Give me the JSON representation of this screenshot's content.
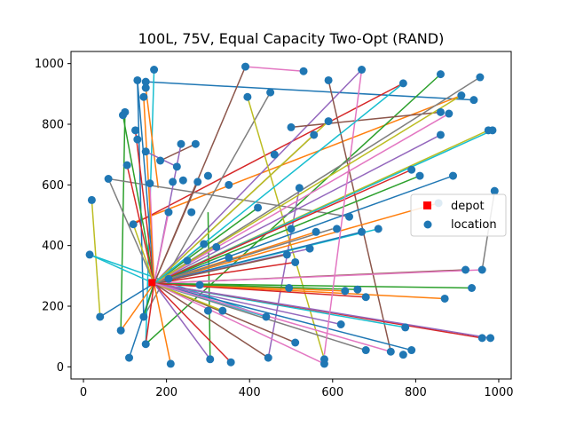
{
  "chart_data": {
    "type": "scatter",
    "title": "100L, 75V, Equal Capacity Two-Opt (RAND)",
    "xlabel": "",
    "ylabel": "",
    "xlim": [
      -30,
      1030
    ],
    "ylim": [
      -40,
      1040
    ],
    "xticks": [
      "0",
      "200",
      "400",
      "600",
      "800",
      "1000"
    ],
    "yticks": [
      "0",
      "200",
      "400",
      "600",
      "800",
      "1000"
    ],
    "grid": false,
    "legend": {
      "position": "center-right",
      "entries": [
        "depot",
        "location"
      ]
    },
    "depot": {
      "x": 165,
      "y": 278,
      "color": "#ff0000"
    },
    "location_color": "#1f77b4",
    "route_colors": [
      "#1f77b4",
      "#ff7f0e",
      "#2ca02c",
      "#d62728",
      "#9467bd",
      "#8c564b",
      "#e377c2",
      "#7f7f7f",
      "#bcbd22",
      "#17becf"
    ],
    "locations": [
      [
        955,
        955
      ],
      [
        940,
        880
      ],
      [
        910,
        895
      ],
      [
        860,
        965
      ],
      [
        770,
        935
      ],
      [
        670,
        980
      ],
      [
        590,
        945
      ],
      [
        530,
        975
      ],
      [
        450,
        905
      ],
      [
        390,
        990
      ],
      [
        395,
        890
      ],
      [
        170,
        980
      ],
      [
        150,
        940
      ],
      [
        130,
        945
      ],
      [
        145,
        890
      ],
      [
        150,
        920
      ],
      [
        100,
        840
      ],
      [
        95,
        830
      ],
      [
        125,
        780
      ],
      [
        130,
        750
      ],
      [
        150,
        710
      ],
      [
        185,
        680
      ],
      [
        160,
        605
      ],
      [
        105,
        665
      ],
      [
        225,
        660
      ],
      [
        215,
        610
      ],
      [
        270,
        735
      ],
      [
        235,
        735
      ],
      [
        275,
        610
      ],
      [
        205,
        510
      ],
      [
        20,
        550
      ],
      [
        60,
        620
      ],
      [
        120,
        470
      ],
      [
        15,
        370
      ],
      [
        40,
        165
      ],
      [
        90,
        120
      ],
      [
        110,
        30
      ],
      [
        145,
        165
      ],
      [
        150,
        75
      ],
      [
        210,
        10
      ],
      [
        305,
        25
      ],
      [
        355,
        15
      ],
      [
        445,
        30
      ],
      [
        510,
        80
      ],
      [
        580,
        25
      ],
      [
        580,
        10
      ],
      [
        680,
        55
      ],
      [
        740,
        50
      ],
      [
        770,
        40
      ],
      [
        775,
        130
      ],
      [
        790,
        55
      ],
      [
        870,
        225
      ],
      [
        935,
        260
      ],
      [
        960,
        95
      ],
      [
        980,
        95
      ],
      [
        920,
        320
      ],
      [
        960,
        320
      ],
      [
        990,
        580
      ],
      [
        975,
        780
      ],
      [
        985,
        780
      ],
      [
        890,
        630
      ],
      [
        855,
        540
      ],
      [
        810,
        630
      ],
      [
        790,
        650
      ],
      [
        860,
        765
      ],
      [
        860,
        840
      ],
      [
        880,
        835
      ],
      [
        500,
        790
      ],
      [
        555,
        765
      ],
      [
        590,
        810
      ],
      [
        640,
        495
      ],
      [
        710,
        455
      ],
      [
        670,
        445
      ],
      [
        560,
        445
      ],
      [
        520,
        590
      ],
      [
        420,
        525
      ],
      [
        510,
        345
      ],
      [
        545,
        390
      ],
      [
        490,
        370
      ],
      [
        500,
        455
      ],
      [
        320,
        395
      ],
      [
        290,
        405
      ],
      [
        350,
        360
      ],
      [
        335,
        185
      ],
      [
        300,
        185
      ],
      [
        260,
        510
      ],
      [
        240,
        615
      ],
      [
        440,
        165
      ],
      [
        495,
        260
      ],
      [
        630,
        250
      ],
      [
        660,
        255
      ],
      [
        680,
        230
      ],
      [
        620,
        140
      ],
      [
        350,
        600
      ],
      [
        280,
        270
      ],
      [
        205,
        290
      ],
      [
        250,
        350
      ],
      [
        300,
        630
      ],
      [
        460,
        700
      ],
      [
        610,
        455
      ]
    ],
    "routes": [
      [
        [
          940,
          880
        ],
        [
          150,
          940
        ]
      ],
      [
        [
          910,
          895
        ],
        [
          110,
          470
        ]
      ],
      [
        [
          860,
          965
        ],
        [
          150,
          75
        ]
      ],
      [
        [
          770,
          935
        ],
        [
          120,
          470
        ]
      ],
      [
        [
          670,
          980
        ],
        [
          170,
          275
        ]
      ],
      [
        [
          590,
          945
        ],
        [
          740,
          50
        ]
      ],
      [
        [
          530,
          975
        ],
        [
          390,
          990
        ]
      ],
      [
        [
          450,
          905
        ],
        [
          145,
          165
        ]
      ],
      [
        [
          395,
          890
        ],
        [
          580,
          25
        ]
      ],
      [
        [
          170,
          980
        ],
        [
          150,
          75
        ]
      ],
      [
        [
          130,
          945
        ],
        [
          145,
          165
        ]
      ],
      [
        [
          150,
          920
        ],
        [
          180,
          590
        ]
      ],
      [
        [
          100,
          840
        ],
        [
          90,
          120
        ]
      ],
      [
        [
          125,
          780
        ],
        [
          170,
          275
        ]
      ],
      [
        [
          150,
          710
        ],
        [
          225,
          660
        ]
      ],
      [
        [
          185,
          680
        ],
        [
          270,
          735
        ]
      ],
      [
        [
          160,
          605
        ],
        [
          170,
          275
        ]
      ],
      [
        [
          60,
          620
        ],
        [
          640,
          495
        ]
      ],
      [
        [
          20,
          550
        ],
        [
          40,
          165
        ]
      ],
      [
        [
          15,
          370
        ],
        [
          440,
          165
        ]
      ],
      [
        [
          110,
          30
        ],
        [
          170,
          275
        ]
      ],
      [
        [
          210,
          10
        ],
        [
          170,
          275
        ]
      ],
      [
        [
          305,
          25
        ],
        [
          300,
          510
        ]
      ],
      [
        [
          355,
          15
        ],
        [
          170,
          275
        ]
      ],
      [
        [
          445,
          30
        ],
        [
          520,
          590
        ]
      ],
      [
        [
          510,
          80
        ],
        [
          170,
          275
        ]
      ],
      [
        [
          580,
          10
        ],
        [
          170,
          275
        ]
      ],
      [
        [
          680,
          55
        ],
        [
          170,
          275
        ]
      ],
      [
        [
          770,
          40
        ],
        [
          770,
          35
        ]
      ],
      [
        [
          775,
          130
        ],
        [
          170,
          275
        ]
      ],
      [
        [
          790,
          55
        ],
        [
          170,
          275
        ]
      ],
      [
        [
          870,
          225
        ],
        [
          170,
          275
        ]
      ],
      [
        [
          935,
          260
        ],
        [
          170,
          275
        ]
      ],
      [
        [
          960,
          95
        ],
        [
          170,
          275
        ]
      ],
      [
        [
          980,
          95
        ],
        [
          170,
          275
        ]
      ],
      [
        [
          920,
          320
        ],
        [
          170,
          275
        ]
      ],
      [
        [
          960,
          320
        ],
        [
          170,
          275
        ]
      ],
      [
        [
          990,
          580
        ],
        [
          960,
          320
        ]
      ],
      [
        [
          975,
          780
        ],
        [
          170,
          275
        ]
      ],
      [
        [
          985,
          780
        ],
        [
          170,
          275
        ]
      ],
      [
        [
          890,
          630
        ],
        [
          170,
          275
        ]
      ],
      [
        [
          855,
          540
        ],
        [
          170,
          275
        ]
      ],
      [
        [
          810,
          630
        ],
        [
          170,
          275
        ]
      ],
      [
        [
          790,
          650
        ],
        [
          170,
          275
        ]
      ],
      [
        [
          860,
          765
        ],
        [
          170,
          275
        ]
      ],
      [
        [
          860,
          840
        ],
        [
          500,
          790
        ]
      ],
      [
        [
          880,
          835
        ],
        [
          170,
          275
        ]
      ],
      [
        [
          555,
          765
        ],
        [
          170,
          275
        ]
      ],
      [
        [
          590,
          810
        ],
        [
          170,
          275
        ]
      ],
      [
        [
          710,
          455
        ],
        [
          170,
          275
        ]
      ],
      [
        [
          670,
          445
        ],
        [
          170,
          275
        ]
      ],
      [
        [
          560,
          445
        ],
        [
          170,
          275
        ]
      ],
      [
        [
          420,
          525
        ],
        [
          170,
          275
        ]
      ],
      [
        [
          510,
          345
        ],
        [
          170,
          275
        ]
      ],
      [
        [
          545,
          390
        ],
        [
          170,
          275
        ]
      ],
      [
        [
          490,
          370
        ],
        [
          170,
          275
        ]
      ],
      [
        [
          320,
          395
        ],
        [
          170,
          275
        ]
      ],
      [
        [
          290,
          405
        ],
        [
          170,
          275
        ]
      ],
      [
        [
          335,
          185
        ],
        [
          170,
          275
        ]
      ],
      [
        [
          440,
          165
        ],
        [
          170,
          275
        ]
      ],
      [
        [
          495,
          260
        ],
        [
          170,
          275
        ]
      ],
      [
        [
          630,
          250
        ],
        [
          170,
          275
        ]
      ],
      [
        [
          660,
          255
        ],
        [
          170,
          275
        ]
      ],
      [
        [
          680,
          230
        ],
        [
          170,
          275
        ]
      ],
      [
        [
          620,
          140
        ],
        [
          170,
          275
        ]
      ],
      [
        [
          390,
          990
        ],
        [
          170,
          275
        ]
      ],
      [
        [
          670,
          980
        ],
        [
          580,
          40
        ]
      ],
      [
        [
          955,
          955
        ],
        [
          170,
          275
        ]
      ],
      [
        [
          910,
          895
        ],
        [
          170,
          275
        ]
      ],
      [
        [
          770,
          935
        ],
        [
          170,
          275
        ]
      ],
      [
        [
          130,
          945
        ],
        [
          170,
          275
        ]
      ],
      [
        [
          145,
          890
        ],
        [
          170,
          275
        ]
      ],
      [
        [
          95,
          830
        ],
        [
          170,
          275
        ]
      ],
      [
        [
          105,
          665
        ],
        [
          170,
          275
        ]
      ],
      [
        [
          235,
          735
        ],
        [
          170,
          275
        ]
      ],
      [
        [
          275,
          610
        ],
        [
          170,
          275
        ]
      ],
      [
        [
          205,
          510
        ],
        [
          170,
          275
        ]
      ],
      [
        [
          60,
          620
        ],
        [
          170,
          275
        ]
      ],
      [
        [
          120,
          470
        ],
        [
          170,
          275
        ]
      ],
      [
        [
          15,
          370
        ],
        [
          170,
          275
        ]
      ],
      [
        [
          40,
          165
        ],
        [
          170,
          275
        ]
      ],
      [
        [
          90,
          120
        ],
        [
          170,
          275
        ]
      ],
      [
        [
          145,
          165
        ],
        [
          170,
          275
        ]
      ],
      [
        [
          150,
          75
        ],
        [
          170,
          275
        ]
      ],
      [
        [
          305,
          25
        ],
        [
          170,
          275
        ]
      ],
      [
        [
          445,
          30
        ],
        [
          170,
          275
        ]
      ],
      [
        [
          740,
          50
        ],
        [
          170,
          275
        ]
      ],
      [
        [
          600,
          455
        ],
        [
          170,
          275
        ]
      ]
    ]
  }
}
